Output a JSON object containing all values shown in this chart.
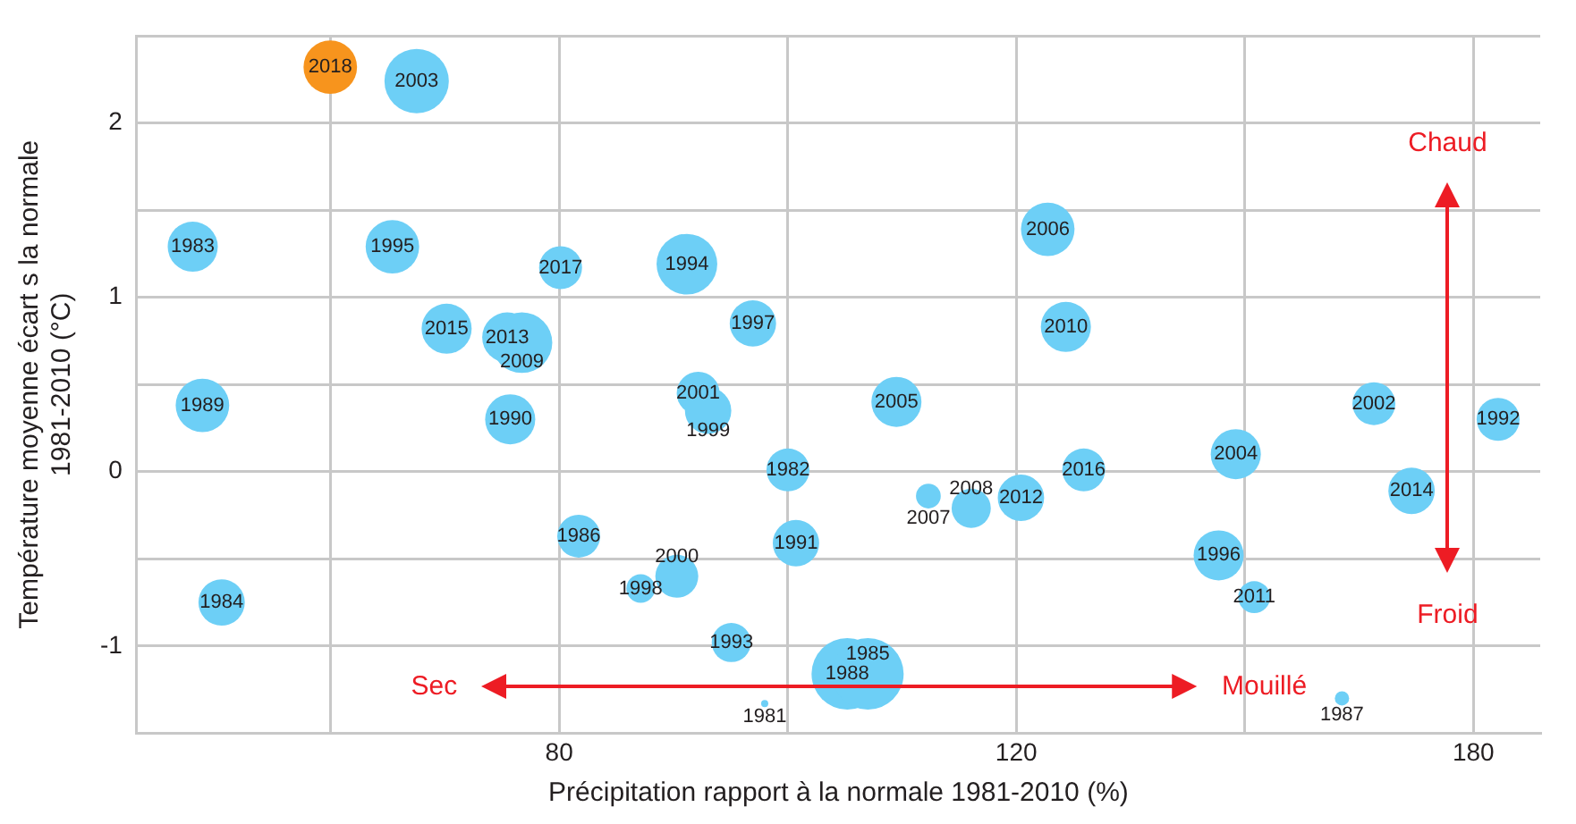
{
  "chart_data": {
    "type": "bubble",
    "xlabel": "Précipitation rapport à la normale 1981-2010 (%)",
    "ylabel": "Température moyenne écart s la normale\n1981-2010 (°C)",
    "annotations": [
      "Chaud",
      "Froid",
      "Sec",
      "Mouillé",
      {
        "text": "2018",
        "x": 65.3,
        "y": 2.32
      },
      {
        "text": "2003",
        "x": 70.5,
        "y": 2.24
      },
      {
        "text": "1983",
        "x": 57.8,
        "y": 1.29
      },
      {
        "text": "1995",
        "x": 69.0,
        "y": 1.29
      },
      {
        "text": "2017",
        "x": 80.1,
        "y": 1.17
      },
      {
        "text": "1994",
        "x": 89.6,
        "y": 1.19
      },
      {
        "text": "2006",
        "x": 123.4,
        "y": 1.39
      },
      {
        "text": "2015",
        "x": 72.4,
        "y": 0.82
      },
      {
        "text": "2013",
        "x": 76.4,
        "y": 0.77
      },
      {
        "text": "2009",
        "x": 77.4,
        "y": 0.74
      },
      {
        "text": "1997",
        "x": 95.0,
        "y": 0.85
      },
      {
        "text": "2010",
        "x": 125.4,
        "y": 0.83
      },
      {
        "text": "1989",
        "x": 58.3,
        "y": 0.38
      },
      {
        "text": "1990",
        "x": 76.6,
        "y": 0.3
      },
      {
        "text": "2001",
        "x": 90.5,
        "y": 0.45
      },
      {
        "text": "1999",
        "x": 91.3,
        "y": 0.35
      },
      {
        "text": "2005",
        "x": 107.9,
        "y": 0.4
      },
      {
        "text": "2002",
        "x": 164.8,
        "y": 0.39
      },
      {
        "text": "1992",
        "x": 184,
        "y": 0.3
      },
      {
        "text": "1982",
        "x": 98,
        "y": 0.01
      },
      {
        "text": "2007",
        "x": 111,
        "y": -0.14
      },
      {
        "text": "2008",
        "x": 115.3,
        "y": -0.21
      },
      {
        "text": "2012",
        "x": 120.5,
        "y": -0.15
      },
      {
        "text": "2016",
        "x": 127.4,
        "y": 0.01
      },
      {
        "text": "2004",
        "x": 145.8,
        "y": 0.1
      },
      {
        "text": "2014",
        "x": 170.4,
        "y": -0.11
      },
      {
        "text": "1986",
        "x": 81.4,
        "y": -0.37
      },
      {
        "text": "1991",
        "x": 98.7,
        "y": -0.41
      },
      {
        "text": "1998",
        "x": 86.0,
        "y": -0.67
      },
      {
        "text": "2000",
        "x": 88.8,
        "y": -0.6
      },
      {
        "text": "1996",
        "x": 143.6,
        "y": -0.48
      },
      {
        "text": "2011",
        "x": 148.2,
        "y": -0.72
      },
      {
        "text": "1984",
        "x": 59.3,
        "y": -0.75
      },
      {
        "text": "1993",
        "x": 93.2,
        "y": -0.98
      },
      {
        "text": "1988",
        "x": 103.3,
        "y": -1.16
      },
      {
        "text": "1985",
        "x": 105.2,
        "y": -1.16
      },
      {
        "text": "1981",
        "x": 96.0,
        "y": -1.33
      },
      {
        "text": "1987",
        "x": 160.2,
        "y": -1.3
      }
    ],
    "log": "x",
    "xlim": [
      55,
      191
    ],
    "xticks": [
      {
        "value": 65.3,
        "label": null
      },
      80,
      {
        "value": 98,
        "label": null
      },
      120,
      {
        "value": 147,
        "label": null
      },
      180
    ],
    "ylim": [
      -1.5,
      2.5
    ],
    "yticks": [
      {
        "value": -1.5,
        "label": null
      },
      -1,
      {
        "value": -0.5,
        "label": null
      },
      0,
      {
        "value": 0.5,
        "label": null
      },
      1,
      {
        "value": 1.5,
        "label": null
      },
      2,
      {
        "value": 2.5,
        "label": null
      }
    ],
    "grid": true,
    "legend": false,
    "x": [
      65.3,
      70.5,
      57.8,
      69.0,
      80.1,
      89.6,
      123.4,
      72.4,
      76.4,
      77.4,
      95.0,
      125.4,
      58.3,
      76.6,
      90.5,
      91.3,
      107.9,
      164.8,
      184,
      98,
      111,
      115.3,
      120.5,
      127.4,
      145.8,
      170.4,
      81.4,
      98.7,
      86.0,
      88.8,
      143.6,
      148.2,
      59.3,
      93.2,
      103.3,
      105.2,
      96.0,
      160.2
    ],
    "values": [
      2.32,
      2.24,
      1.29,
      1.29,
      1.17,
      1.19,
      1.39,
      0.82,
      0.77,
      0.74,
      0.85,
      0.83,
      0.38,
      0.3,
      0.45,
      0.35,
      0.4,
      0.39,
      0.3,
      0.01,
      -0.14,
      -0.21,
      -0.15,
      0.01,
      0.1,
      -0.11,
      -0.37,
      -0.41,
      -0.67,
      -0.6,
      -0.48,
      -0.72,
      -0.75,
      -0.98,
      -1.16,
      -1.16,
      -1.33,
      -1.3
    ],
    "sizes": [
      0.56,
      0.81,
      0.49,
      0.56,
      0.36,
      0.72,
      0.56,
      0.49,
      0.49,
      0.72,
      0.42,
      0.49,
      0.56,
      0.49,
      0.36,
      0.42,
      0.49,
      0.36,
      0.36,
      0.36,
      0.12,
      0.3,
      0.42,
      0.36,
      0.49,
      0.42,
      0.36,
      0.42,
      0.16,
      0.36,
      0.49,
      0.2,
      0.42,
      0.3,
      1,
      1,
      0.01,
      0.04
    ],
    "colors": [
      "#f7941d",
      "#6dcff6",
      "#6dcff6",
      "#6dcff6",
      "#6dcff6",
      "#6dcff6",
      "#6dcff6",
      "#6dcff6",
      "#6dcff6",
      "#6dcff6",
      "#6dcff6",
      "#6dcff6",
      "#6dcff6",
      "#6dcff6",
      "#6dcff6",
      "#6dcff6",
      "#6dcff6",
      "#6dcff6",
      "#6dcff6",
      "#6dcff6",
      "#6dcff6",
      "#6dcff6",
      "#6dcff6",
      "#6dcff6",
      "#6dcff6",
      "#6dcff6",
      "#6dcff6",
      "#6dcff6",
      "#6dcff6",
      "#6dcff6",
      "#6dcff6",
      "#6dcff6",
      "#6dcff6",
      "#6dcff6",
      "#6dcff6",
      "#6dcff6",
      "#6dcff6",
      "#6dcff6"
    ]
  }
}
